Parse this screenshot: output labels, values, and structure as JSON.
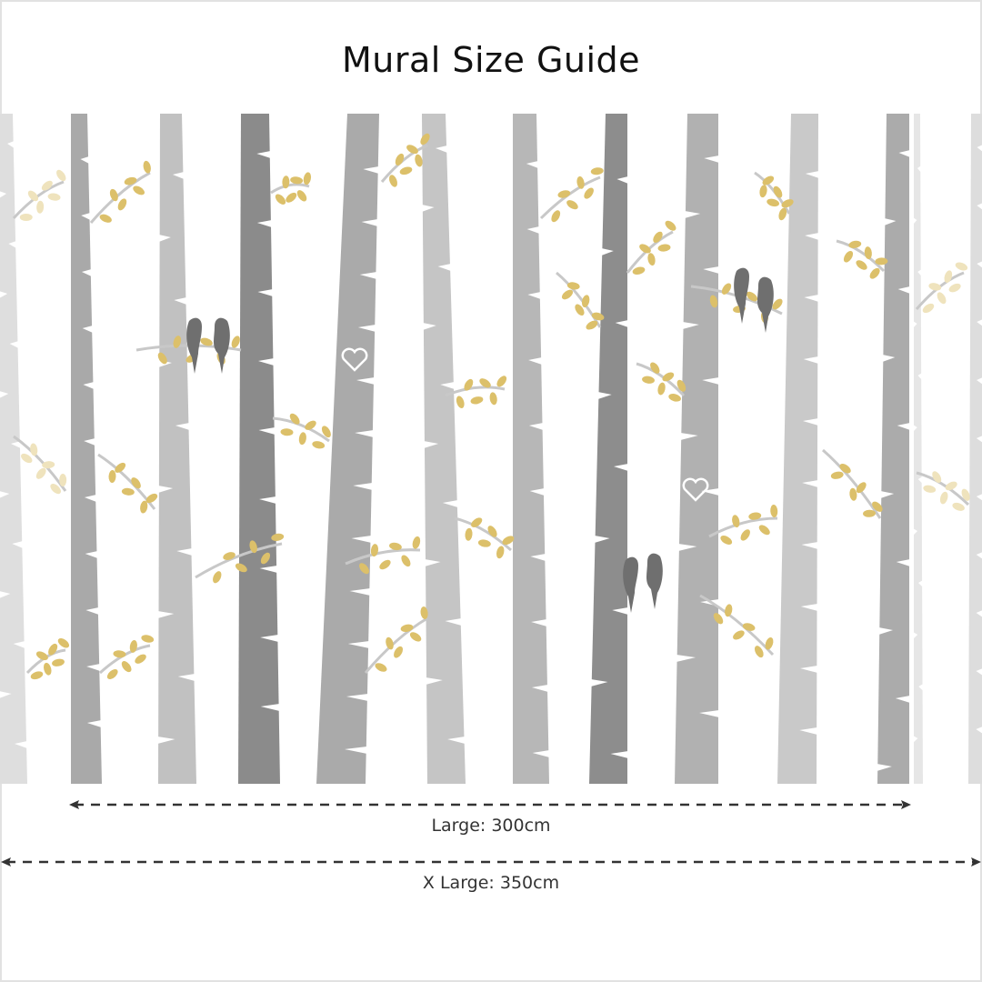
{
  "title": "Mural Size Guide",
  "dimensions": [
    {
      "label": "Large: 300cm"
    },
    {
      "label": "X Large: 350cm"
    }
  ],
  "colors": {
    "leaf": "#dcc06a",
    "bird": "#6f6f6f",
    "arrow": "#333333"
  },
  "icons": [
    "bird-icon",
    "heart-icon",
    "leaf-icon",
    "arrow-left-icon",
    "arrow-right-icon"
  ]
}
